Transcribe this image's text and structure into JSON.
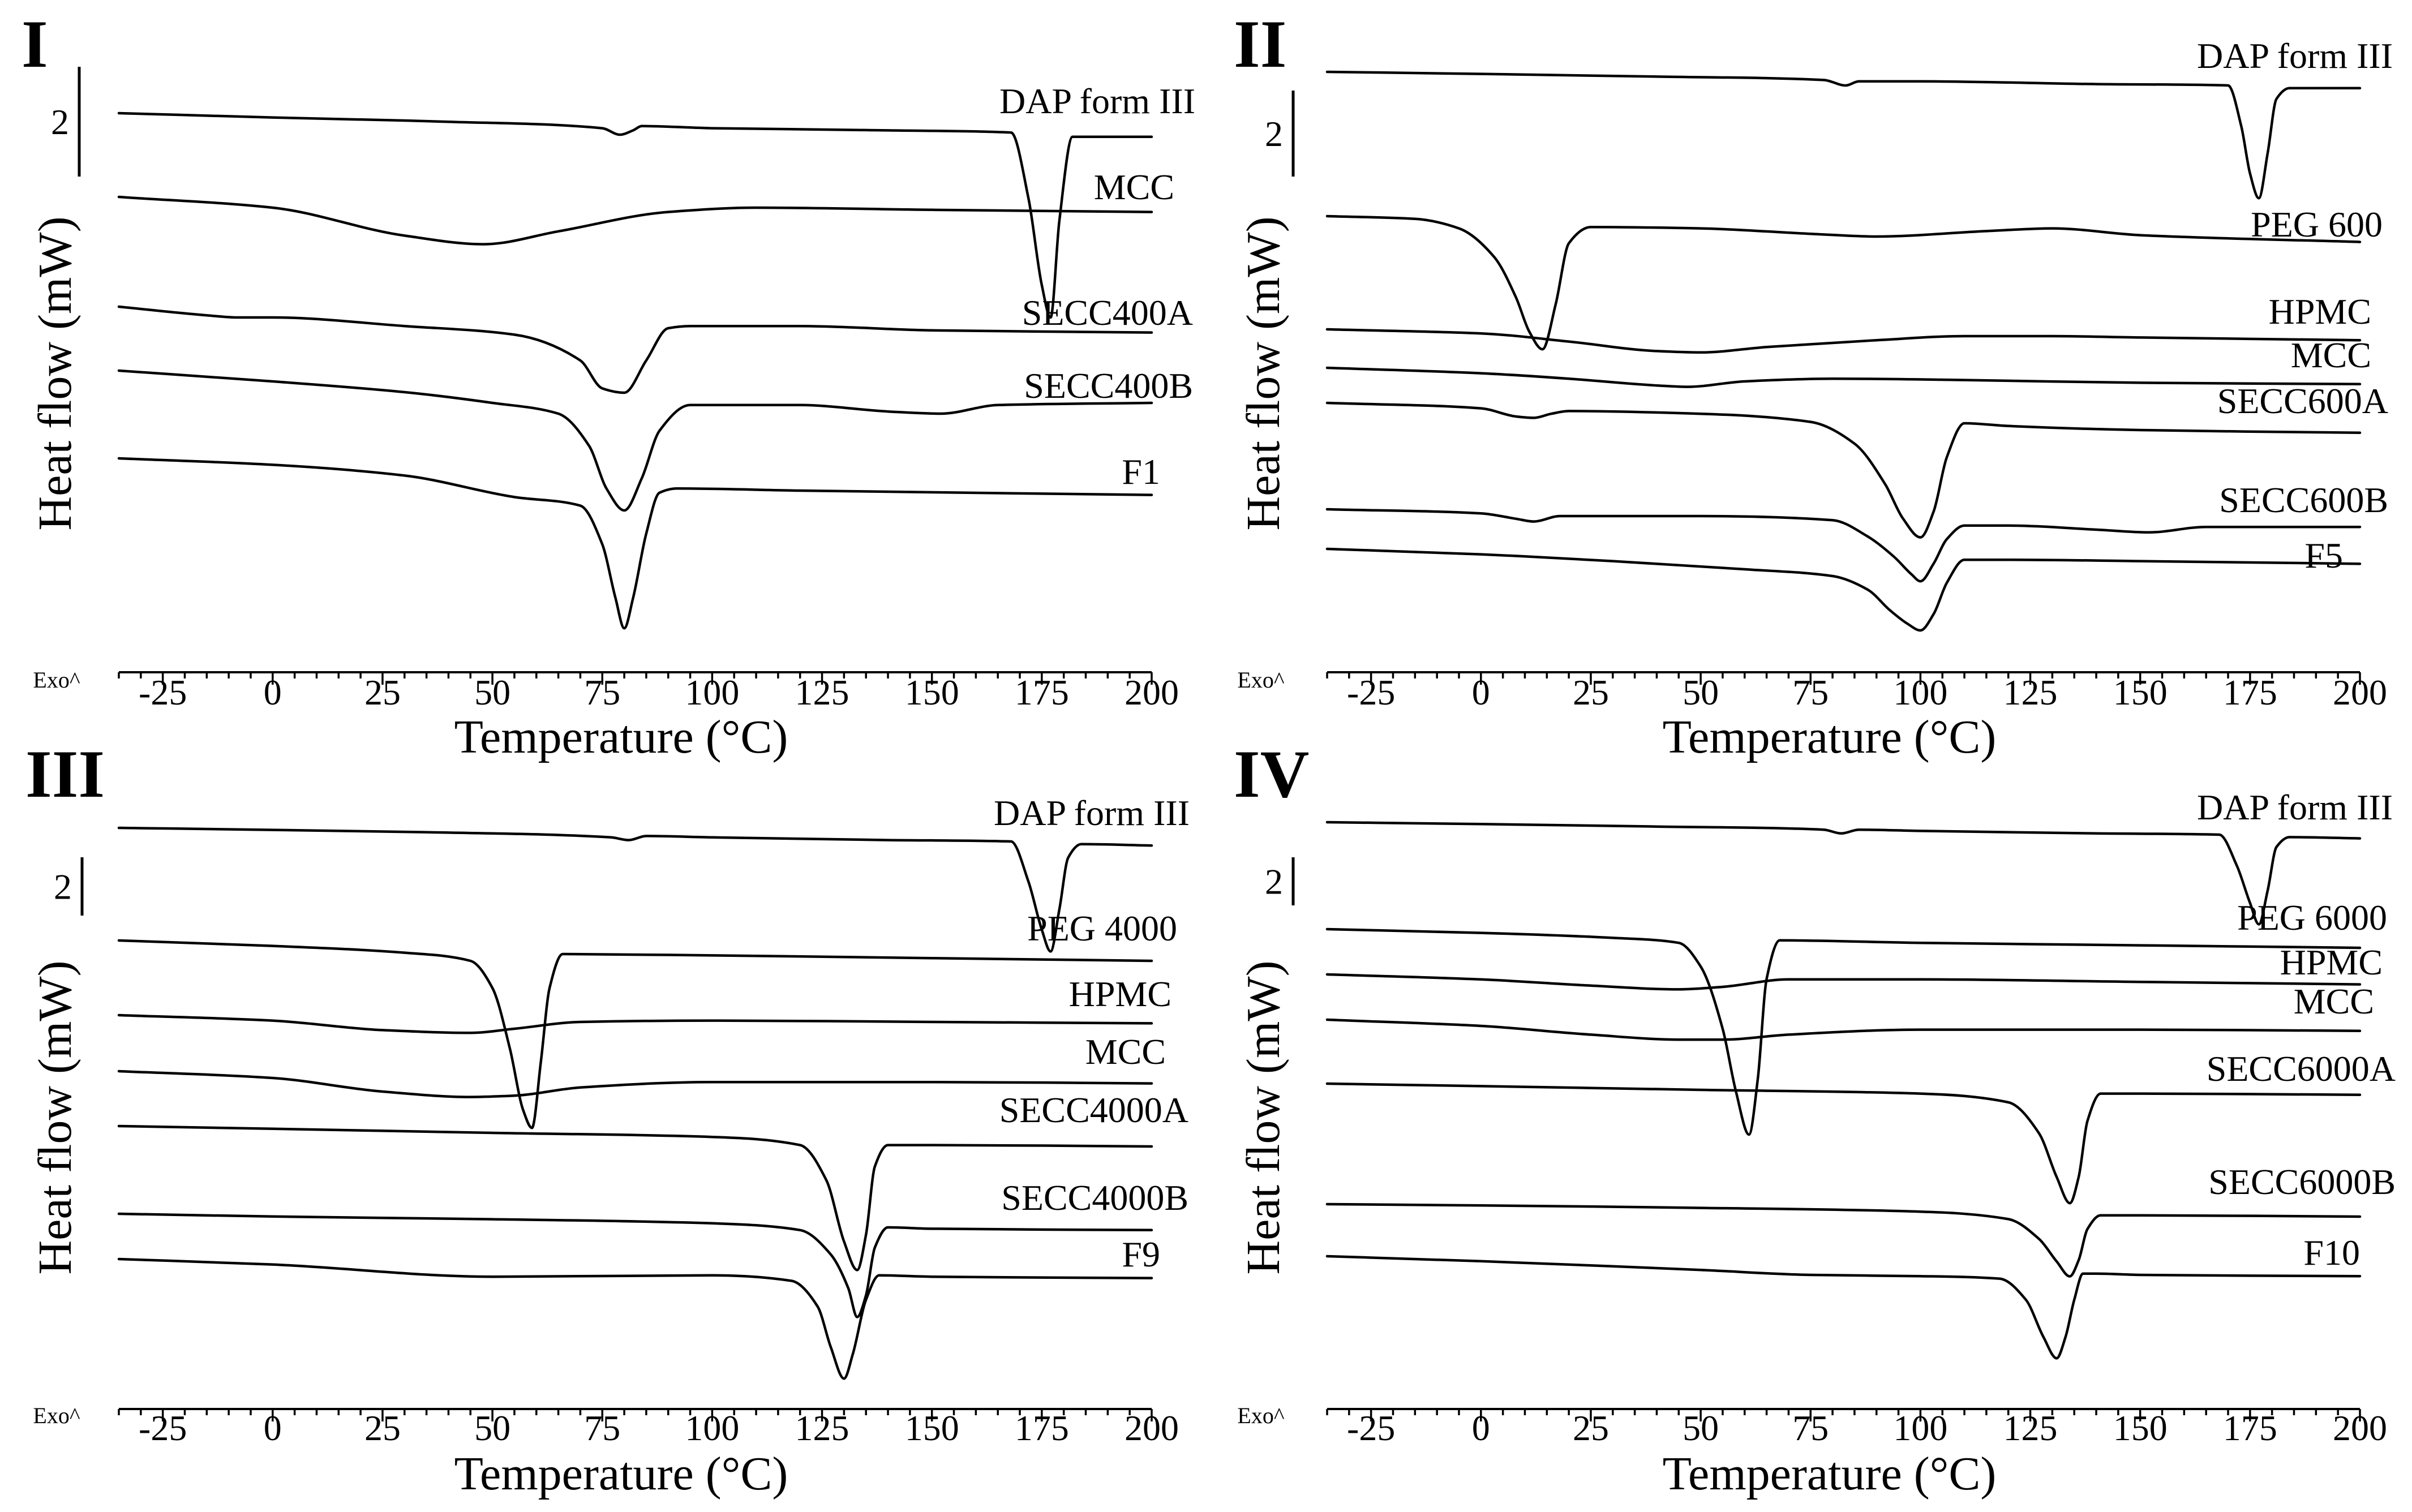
{
  "figure": {
    "x_tick_labels": [
      "-25",
      "0",
      "25",
      "50",
      "75",
      "100",
      "125",
      "150",
      "175",
      "200"
    ],
    "exo_label": "Exo^",
    "scale_bar_label": "2"
  },
  "chart_data": [
    {
      "type": "line",
      "panel": "I",
      "title": "I",
      "xlabel": "Temperature (°C)",
      "ylabel": "Heat flow (mW)",
      "xlim": [
        -35,
        200
      ],
      "xticks": [
        -25,
        0,
        25,
        50,
        75,
        100,
        125,
        150,
        175,
        200
      ],
      "y_scale_bar_mW": 2,
      "series": [
        {
          "name": "DAP form III",
          "label": "DAP form III",
          "x": [
            -35,
            0,
            40,
            75,
            79,
            82,
            84,
            100,
            140,
            168,
            172,
            175,
            177,
            179,
            182,
            200
          ],
          "y": [
            0,
            0.2,
            0.4,
            0.7,
            1.0,
            0.8,
            0.6,
            0.7,
            0.8,
            0.9,
            4,
            8,
            9.5,
            5,
            1.1,
            1.1
          ]
        },
        {
          "name": "MCC",
          "label": "MCC",
          "x": [
            -35,
            0,
            30,
            48,
            65,
            90,
            110,
            150,
            200
          ],
          "y": [
            0,
            0.5,
            1.8,
            2.2,
            1.6,
            0.7,
            0.5,
            0.6,
            0.7
          ]
        },
        {
          "name": "SECC400A",
          "label": "SECC400A",
          "x": [
            -35,
            -15,
            -8,
            0,
            30,
            55,
            70,
            75,
            80,
            85,
            90,
            95,
            120,
            150,
            200
          ],
          "y": [
            0,
            0.4,
            0.5,
            0.5,
            0.9,
            1.3,
            2.5,
            3.8,
            4.0,
            2.5,
            1.0,
            0.9,
            0.9,
            1.1,
            1.2
          ]
        },
        {
          "name": "SECC400B",
          "label": "SECC400B",
          "x": [
            -35,
            0,
            30,
            50,
            65,
            72,
            76,
            80,
            84,
            88,
            95,
            120,
            140,
            152,
            165,
            200
          ],
          "y": [
            0,
            0.5,
            1.0,
            1.5,
            2.0,
            3.5,
            5.5,
            6.5,
            5.0,
            2.8,
            1.6,
            1.6,
            1.9,
            2.0,
            1.6,
            1.5
          ]
        },
        {
          "name": "F1",
          "label": "F1",
          "x": [
            -35,
            0,
            30,
            55,
            70,
            75,
            78,
            80,
            82,
            85,
            88,
            92,
            120,
            200
          ],
          "y": [
            0,
            0.3,
            0.8,
            1.8,
            2.2,
            4,
            6.5,
            7.9,
            6.5,
            3.5,
            1.6,
            1.4,
            1.5,
            1.7
          ]
        }
      ]
    },
    {
      "type": "line",
      "panel": "II",
      "title": "II",
      "xlabel": "Temperature (°C)",
      "ylabel": "Heat flow (mW)",
      "xlim": [
        -35,
        200
      ],
      "xticks": [
        -25,
        0,
        25,
        50,
        75,
        100,
        125,
        150,
        175,
        200
      ],
      "y_scale_bar_mW": 2,
      "series": [
        {
          "name": "DAP form III",
          "label": "DAP form III",
          "x": [
            -35,
            0,
            40,
            78,
            83,
            86,
            100,
            140,
            170,
            173,
            175,
            177,
            179,
            181,
            184,
            200
          ],
          "y": [
            0,
            0.15,
            0.35,
            0.6,
            1.0,
            0.7,
            0.7,
            0.9,
            1.0,
            4,
            7.5,
            9.3,
            6,
            2,
            1.2,
            1.2
          ]
        },
        {
          "name": "PEG 600",
          "label": "PEG 600",
          "x": [
            -35,
            -15,
            -5,
            3,
            8,
            11,
            14,
            17,
            20,
            25,
            50,
            75,
            90,
            115,
            130,
            150,
            200
          ],
          "y": [
            0,
            0.2,
            0.9,
            3.0,
            6.0,
            8.5,
            9.8,
            6.5,
            2.0,
            0.8,
            0.9,
            1.3,
            1.5,
            1.1,
            0.9,
            1.4,
            1.9
          ]
        },
        {
          "name": "HPMC",
          "label": "HPMC",
          "x": [
            -35,
            0,
            20,
            40,
            50,
            65,
            90,
            110,
            130,
            150,
            200
          ],
          "y": [
            0,
            0.3,
            0.9,
            1.6,
            1.7,
            1.3,
            0.8,
            0.5,
            0.5,
            0.6,
            0.8
          ]
        },
        {
          "name": "MCC",
          "label": "MCC",
          "x": [
            -35,
            0,
            20,
            40,
            47,
            60,
            80,
            110,
            150,
            200
          ],
          "y": [
            0,
            0.4,
            0.8,
            1.3,
            1.4,
            1.0,
            0.8,
            0.9,
            1.1,
            1.2
          ]
        },
        {
          "name": "SECC600A",
          "label": "SECC600A",
          "x": [
            -35,
            0,
            8,
            12,
            16,
            20,
            50,
            75,
            85,
            92,
            96,
            100,
            103,
            106,
            110,
            120,
            150,
            200
          ],
          "y": [
            0,
            0.4,
            1.0,
            1.1,
            0.8,
            0.6,
            0.8,
            1.4,
            3.0,
            6.0,
            8.5,
            9.9,
            8.0,
            4.0,
            1.5,
            1.7,
            2.0,
            2.2
          ]
        },
        {
          "name": "SECC600B",
          "label": "SECC600B",
          "x": [
            -35,
            0,
            8,
            12,
            18,
            50,
            80,
            88,
            94,
            98,
            100,
            103,
            106,
            110,
            120,
            140,
            152,
            165,
            200
          ],
          "y": [
            0,
            0.3,
            0.7,
            0.9,
            0.5,
            0.5,
            0.8,
            2.0,
            3.5,
            4.8,
            5.3,
            4.0,
            2.2,
            1.2,
            1.2,
            1.5,
            1.7,
            1.3,
            1.3
          ]
        },
        {
          "name": "F5",
          "label": "F5",
          "x": [
            -35,
            0,
            30,
            60,
            80,
            88,
            93,
            97,
            100,
            103,
            106,
            110,
            120,
            150,
            200
          ],
          "y": [
            0,
            0.4,
            0.9,
            1.5,
            2.0,
            3.0,
            4.5,
            5.5,
            6.0,
            4.8,
            2.5,
            0.8,
            0.8,
            0.9,
            1.1
          ]
        }
      ]
    },
    {
      "type": "line",
      "panel": "III",
      "title": "III",
      "xlabel": "Temperature (°C)",
      "ylabel": "Heat flow (mW)",
      "xlim": [
        -35,
        200
      ],
      "xticks": [
        -25,
        0,
        25,
        50,
        75,
        100,
        125,
        150,
        175,
        200
      ],
      "y_scale_bar_mW": 2,
      "series": [
        {
          "name": "DAP form III",
          "label": "DAP form III",
          "x": [
            -35,
            0,
            40,
            77,
            81,
            85,
            100,
            140,
            168,
            172,
            175,
            177,
            179,
            181,
            184,
            200
          ],
          "y": [
            0,
            0.15,
            0.35,
            0.7,
            0.9,
            0.6,
            0.7,
            0.9,
            1.0,
            4,
            7.5,
            9.1,
            6,
            2.2,
            1.2,
            1.3
          ]
        },
        {
          "name": "PEG 4000",
          "label": "PEG 4000",
          "x": [
            -35,
            0,
            30,
            45,
            50,
            54,
            57,
            59,
            61,
            63,
            66,
            100,
            150,
            200
          ],
          "y": [
            0,
            0.4,
            0.9,
            1.5,
            3.5,
            8,
            12.5,
            13.8,
            9,
            3.5,
            1.0,
            1.1,
            1.3,
            1.5
          ]
        },
        {
          "name": "HPMC",
          "label": "HPMC",
          "x": [
            -35,
            0,
            25,
            45,
            55,
            70,
            100,
            150,
            200
          ],
          "y": [
            0,
            0.4,
            1.1,
            1.3,
            1.0,
            0.5,
            0.4,
            0.5,
            0.6
          ]
        },
        {
          "name": "MCC",
          "label": "MCC",
          "x": [
            -35,
            0,
            25,
            45,
            55,
            70,
            100,
            150,
            200
          ],
          "y": [
            0,
            0.5,
            1.5,
            1.9,
            1.8,
            1.2,
            0.8,
            0.8,
            0.9
          ]
        },
        {
          "name": "SECC4000A",
          "label": "SECC4000A",
          "x": [
            -35,
            0,
            50,
            100,
            120,
            126,
            130,
            133,
            135,
            137,
            140,
            150,
            200
          ],
          "y": [
            0,
            0.2,
            0.5,
            0.8,
            1.4,
            4,
            8.5,
            10.6,
            8,
            3.0,
            1.4,
            1.4,
            1.5
          ]
        },
        {
          "name": "SECC4000B",
          "label": "SECC4000B",
          "x": [
            -35,
            0,
            50,
            100,
            120,
            127,
            131,
            133,
            135,
            137,
            140,
            150,
            200
          ],
          "y": [
            0,
            0.2,
            0.4,
            0.7,
            1.2,
            3,
            5.5,
            7.6,
            6,
            2.5,
            1.0,
            1.1,
            1.2
          ]
        },
        {
          "name": "F9",
          "label": "F9",
          "x": [
            -35,
            0,
            50,
            100,
            118,
            124,
            127,
            130,
            132,
            135,
            138,
            150,
            200
          ],
          "y": [
            0,
            0.4,
            1.3,
            1.2,
            1.6,
            3.5,
            6.5,
            8.8,
            7,
            3.0,
            1.2,
            1.3,
            1.4
          ]
        }
      ]
    },
    {
      "type": "line",
      "panel": "IV",
      "title": "IV",
      "xlabel": "Temperature (°C)",
      "ylabel": "Heat flow (mW)",
      "xlim": [
        -35,
        200
      ],
      "xticks": [
        -25,
        0,
        25,
        50,
        75,
        100,
        125,
        150,
        175,
        200
      ],
      "y_scale_bar_mW": 2,
      "series": [
        {
          "name": "DAP form III",
          "label": "DAP form III",
          "x": [
            -35,
            0,
            40,
            78,
            82,
            86,
            100,
            140,
            168,
            172,
            175,
            177,
            179,
            181,
            184,
            200
          ],
          "y": [
            0,
            0.15,
            0.35,
            0.6,
            0.9,
            0.6,
            0.7,
            0.9,
            1.0,
            3.5,
            6.5,
            8.2,
            5.5,
            2,
            1.2,
            1.3
          ]
        },
        {
          "name": "PEG 6000",
          "label": "PEG 6000",
          "x": [
            -35,
            0,
            30,
            45,
            50,
            55,
            58,
            61,
            63,
            65,
            68,
            100,
            150,
            200
          ],
          "y": [
            0,
            0.3,
            0.7,
            1.1,
            3,
            8,
            13,
            16.5,
            12,
            4,
            0.9,
            1.1,
            1.3,
            1.5
          ]
        },
        {
          "name": "HPMC",
          "label": "HPMC",
          "x": [
            -35,
            0,
            25,
            45,
            55,
            70,
            100,
            150,
            200
          ],
          "y": [
            0,
            0.4,
            0.9,
            1.2,
            1.0,
            0.4,
            0.4,
            0.6,
            0.8
          ]
        },
        {
          "name": "MCC",
          "label": "MCC",
          "x": [
            -35,
            0,
            25,
            45,
            55,
            70,
            100,
            150,
            200
          ],
          "y": [
            0,
            0.5,
            1.2,
            1.6,
            1.6,
            1.2,
            0.8,
            0.8,
            0.9
          ]
        },
        {
          "name": "SECC6000A",
          "label": "SECC6000A",
          "x": [
            -35,
            0,
            50,
            100,
            120,
            127,
            131,
            134,
            136,
            138,
            141,
            150,
            200
          ],
          "y": [
            0,
            0.2,
            0.5,
            0.8,
            1.5,
            4,
            7.5,
            9.6,
            7.5,
            3,
            0.8,
            0.8,
            0.9
          ]
        },
        {
          "name": "SECC6000B",
          "label": "SECC6000B",
          "x": [
            -35,
            0,
            50,
            100,
            120,
            127,
            131,
            134,
            136,
            138,
            141,
            150,
            200
          ],
          "y": [
            0,
            0.1,
            0.3,
            0.6,
            1.2,
            2.8,
            4.6,
            5.8,
            4.5,
            2,
            0.9,
            0.9,
            1.0
          ]
        },
        {
          "name": "F10",
          "label": "F10",
          "x": [
            -35,
            0,
            50,
            75,
            100,
            118,
            124,
            128,
            131,
            133,
            135,
            137,
            140,
            150,
            200
          ],
          "y": [
            0,
            0.4,
            1.1,
            1.5,
            1.6,
            1.8,
            3.5,
            6.5,
            8.2,
            6.5,
            3.5,
            1.4,
            1.4,
            1.5,
            1.6
          ]
        }
      ]
    }
  ]
}
